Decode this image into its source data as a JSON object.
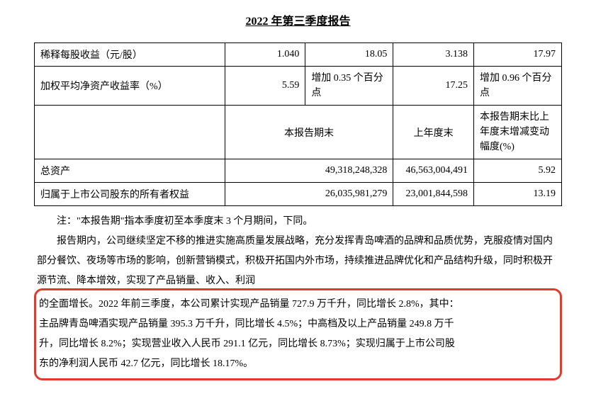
{
  "report_title": "2022 年第三季度报告",
  "table": {
    "rows": [
      {
        "label": "稀释每股收益（元/股）",
        "c2": "1.040",
        "c3": "18.05",
        "c4": "3.138",
        "c5": "17.97"
      },
      {
        "label": "加权平均净资产收益率（%）",
        "c2": "5.59",
        "c3": "增加 0.35 个百分点",
        "c4": "17.25",
        "c5": "增加 0.96 个百分点"
      }
    ],
    "header2": {
      "h1_blank": "",
      "h2": "本报告期末",
      "h3": "上年度末",
      "h4": "本报告期末比上年度末增减变动幅度(%)"
    },
    "rows2": [
      {
        "label": "总资产",
        "v1": "49,318,248,328",
        "v2": "46,563,004,491",
        "v3": "5.92"
      },
      {
        "label": "归属于上市公司股东的所有者权益",
        "v1": "26,035,981,279",
        "v2": "23,001,844,598",
        "v3": "13.19"
      }
    ]
  },
  "note": "注：\"本报告期\"指本季度初至本季度末 3 个月期间，下同。",
  "paragraph_pre": "报告期内，公司继续坚定不移的推进实施高质量发展战略，充分发挥青岛啤酒的品牌和品质优势，克服疫情对国内部分餐饮、夜场等市场的影响，创新营销模式，积极开拓国内外市场，持续推进品牌优化和产品结构升级，同时积极开源节流、降本增效，实现了产品销量、收入、利润",
  "highlight_l1": "的全面增长。2022 年前三季度，本公司累计实现产品销量 727.9 万千升，同比增长 2.8%，其中：",
  "highlight_l2": "主品牌青岛啤酒实现产品销量 395.3 万千升，同比增长 4.5%；中高档及以上产品销量 249.8 万千",
  "highlight_l3": "升，同比增长 8.2%；实现营业收入人民币 291.1 亿元，同比增长 8.73%；实现归属于上市公司股",
  "highlight_l4": "东的净利润人民币 42.7 亿元，同比增长 18.17%。",
  "colors": {
    "highlight_border": "#e13b2e",
    "text": "#000000",
    "background": "#ffffff"
  }
}
